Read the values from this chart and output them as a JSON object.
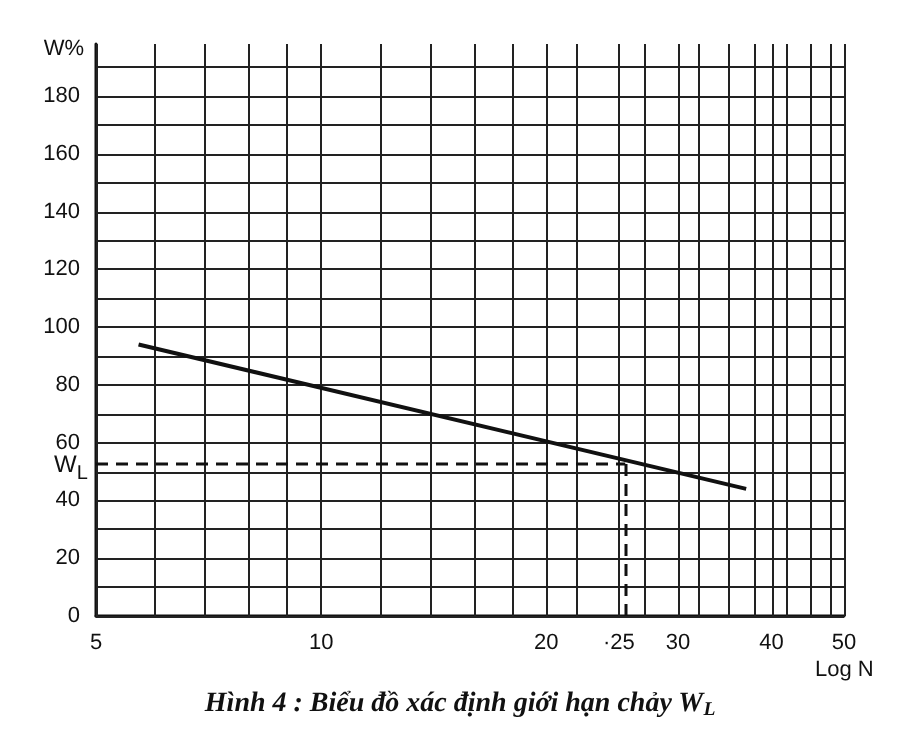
{
  "chart_data": {
    "type": "line",
    "title": "Hình 4 : Biểu đồ xác định giới hạn chảy W$_{L}$",
    "xlabel": "Log N",
    "ylabel": "W%",
    "log": "x",
    "x": [
      5.7,
      37
    ],
    "series": [
      {
        "color": "#111111",
        "values": [
          94,
          44
        ]
      }
    ],
    "xlim": [
      5,
      50
    ],
    "xticks": [
      5,
      {
        "value": 6,
        "label": null
      },
      {
        "value": 7,
        "label": null
      },
      {
        "value": 8,
        "label": null
      },
      {
        "value": 9,
        "label": null
      },
      10,
      {
        "value": 12,
        "label": null
      },
      {
        "value": 14,
        "label": null
      },
      {
        "value": 16,
        "label": null
      },
      {
        "value": 18,
        "label": null
      },
      20,
      {
        "value": 22,
        "label": null
      },
      {
        "value": 25,
        "label": "·25"
      },
      {
        "value": 27,
        "label": null
      },
      30,
      {
        "value": 32,
        "label": null
      },
      {
        "value": 35,
        "label": null
      },
      {
        "value": 38,
        "label": null
      },
      40,
      {
        "value": 42,
        "label": null
      },
      {
        "value": 45,
        "label": null
      },
      {
        "value": 48,
        "label": null
      },
      50
    ],
    "ylim": [
      0,
      198
    ],
    "yticks": [
      0,
      {
        "value": 10,
        "label": null
      },
      20,
      {
        "value": 30,
        "label": null
      },
      40,
      {
        "value": 50,
        "label": null
      },
      60,
      {
        "value": 70,
        "label": null
      },
      80,
      {
        "value": 90,
        "label": null
      },
      100,
      {
        "value": 110,
        "label": null
      },
      120,
      {
        "value": 130,
        "label": null
      },
      140,
      {
        "value": 150,
        "label": null
      },
      160,
      {
        "value": 170,
        "label": null
      },
      180,
      {
        "value": 190,
        "label": null
      }
    ],
    "grid": true,
    "marker": "none",
    "line_style": "solid",
    "ref_lines": [
      {
        "axis": "y",
        "value": 53,
        "label": "W$_{L}$",
        "line_style": "dashed"
      },
      {
        "axis": "x",
        "value": 25.5,
        "label": null,
        "line_style": "dashed"
      }
    ]
  }
}
